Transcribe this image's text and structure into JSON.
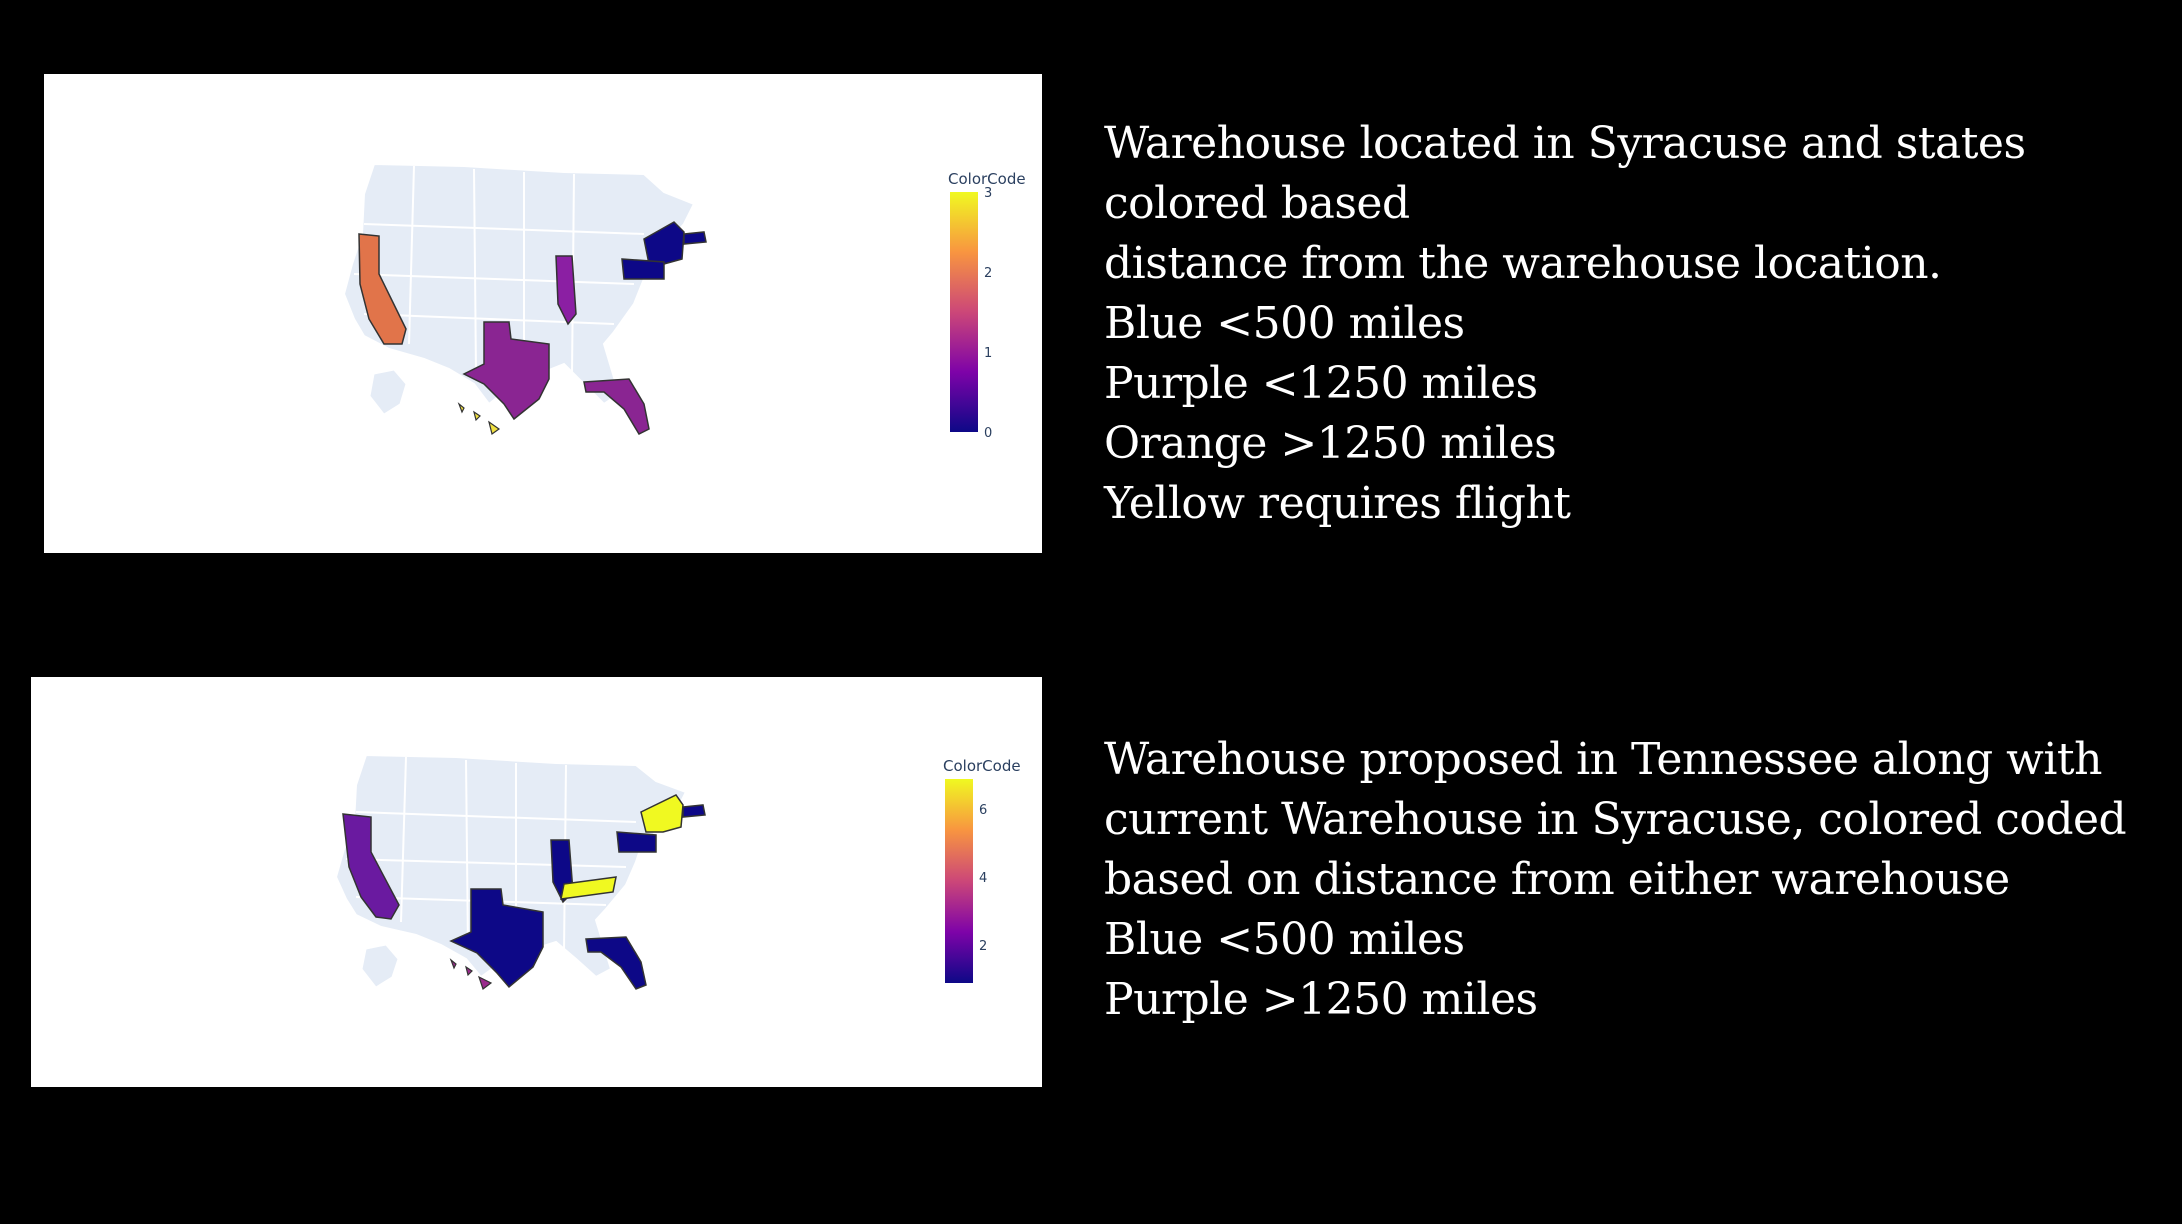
{
  "maps": [
    {
      "colorbar": {
        "title": "ColorCode",
        "ticks": [
          "3",
          "2",
          "1",
          "0"
        ],
        "range": [
          0,
          3
        ]
      },
      "colorscale": "Plasma",
      "highlighted_states": [
        {
          "state": "CA",
          "value": 2.4,
          "color": "#e1744a"
        },
        {
          "state": "IL",
          "value": 1.2,
          "color": "#8b1fa3"
        },
        {
          "state": "TX",
          "value": 1.3,
          "color": "#8a2592"
        },
        {
          "state": "FL",
          "value": 1.3,
          "color": "#8a2592"
        },
        {
          "state": "HI",
          "value": 3,
          "color": "#f0e040"
        },
        {
          "state": "NY",
          "value": 0,
          "color": "#0d0887"
        },
        {
          "state": "PA",
          "value": 0,
          "color": "#0d0887"
        },
        {
          "state": "MA",
          "value": 0,
          "color": "#0d0887"
        }
      ]
    },
    {
      "colorbar": {
        "title": "ColorCode",
        "ticks": [
          "6",
          "4",
          "2"
        ],
        "range": [
          1,
          7
        ]
      },
      "colorscale": "Plasma",
      "highlighted_states": [
        {
          "state": "CA",
          "value": 3,
          "color": "#6a1aa0"
        },
        {
          "state": "IL",
          "value": 1,
          "color": "#0d0887"
        },
        {
          "state": "TX",
          "value": 1,
          "color": "#0d0887"
        },
        {
          "state": "FL",
          "value": 1,
          "color": "#0d0887"
        },
        {
          "state": "HI",
          "value": 3,
          "color": "#9a2b8c"
        },
        {
          "state": "NY",
          "value": 7,
          "color": "#f0f921"
        },
        {
          "state": "TN",
          "value": 7,
          "color": "#f0f921"
        },
        {
          "state": "PA",
          "value": 1,
          "color": "#0d0887"
        },
        {
          "state": "MA",
          "value": 1,
          "color": "#0d0887"
        }
      ]
    }
  ],
  "descriptions": [
    {
      "lines": [
        "Warehouse located in Syracuse and states",
        "colored based",
        "distance from the warehouse location.",
        "Blue <500 miles",
        "Purple <1250 miles",
        "Orange >1250 miles",
        "Yellow requires flight"
      ]
    },
    {
      "lines": [
        "Warehouse proposed in Tennessee along with",
        "current Warehouse in Syracuse, colored coded",
        "based on distance from either warehouse",
        "Blue <500 miles",
        "Purple >1250 miles"
      ]
    }
  ],
  "colors": {
    "background": "#000000",
    "base_state": "#e5ecf6",
    "state_border": "#ffffff",
    "text": "#ffffff"
  }
}
